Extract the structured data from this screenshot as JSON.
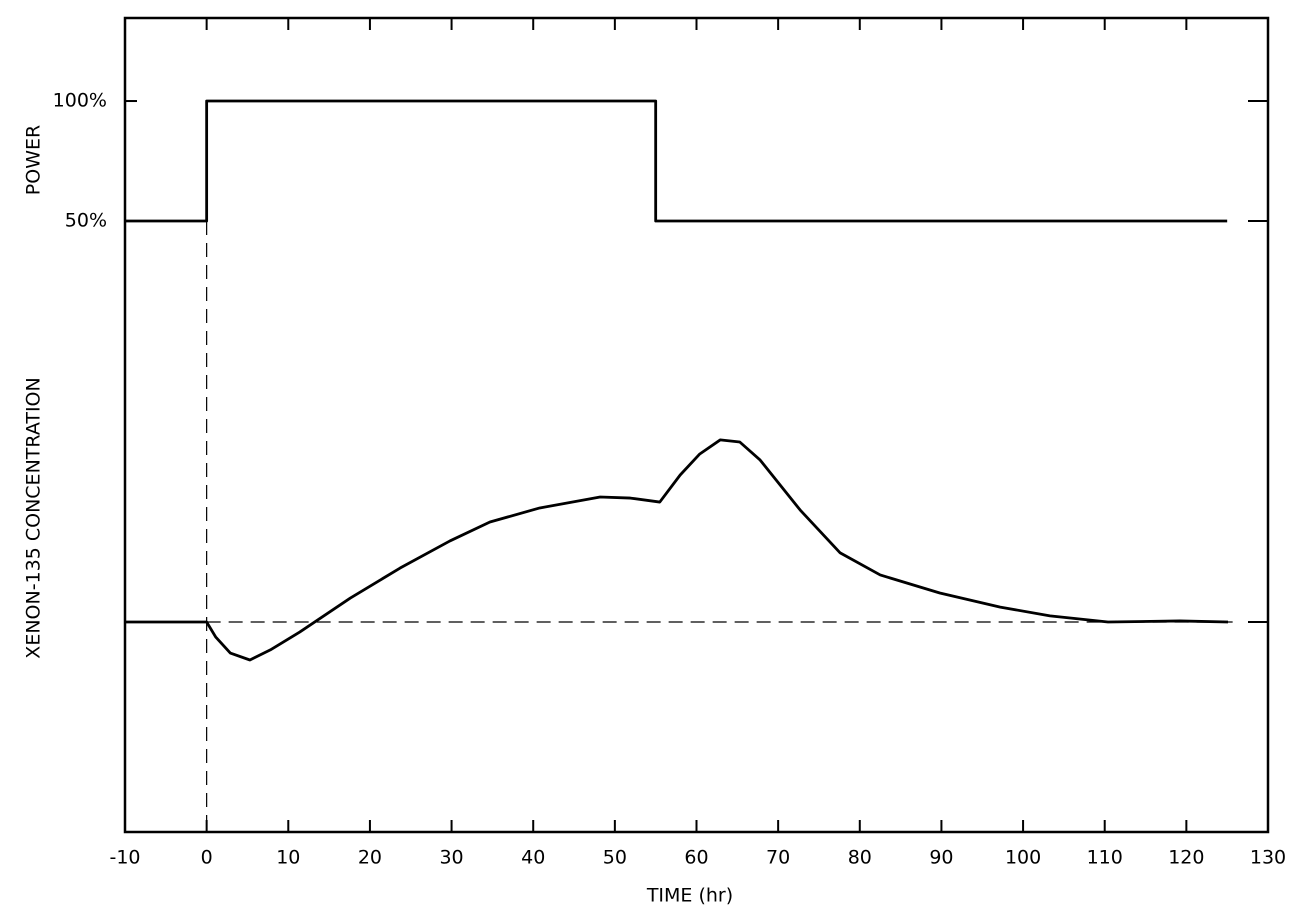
{
  "chart_data": {
    "type": "line",
    "x_label": "TIME (hr)",
    "y_label": "POWER",
    "y2_label": "XENON-135 CONCENTRATION",
    "xlim": [
      -10,
      130
    ],
    "xticks": [
      -10,
      0,
      10,
      20,
      30,
      40,
      50,
      60,
      70,
      80,
      90,
      100,
      110,
      120,
      130
    ],
    "ylim": [
      -204.6,
      134.6
    ],
    "yticks": [
      {
        "value": 100,
        "label": "100%"
      },
      {
        "value": 50,
        "label": "50%"
      }
    ],
    "y2lim": [
      0,
      3.876
    ],
    "reference_lines": {
      "x": 0,
      "y2": 1
    },
    "series": [
      {
        "name": "POWER",
        "color": "#000000",
        "x": [
          -10,
          0,
          0,
          55,
          55,
          125
        ],
        "values": [
          50,
          50,
          100,
          100,
          50,
          50
        ]
      },
      {
        "name": "XENON-135 CONCENTRATION",
        "color": "#000000",
        "axis": "y2",
        "x": [
          -10,
          0,
          1.1,
          2.9,
          5.3,
          7.8,
          11.4,
          17.6,
          23.7,
          29.8,
          34.7,
          40.8,
          48.2,
          51.9,
          55.5,
          58.0,
          60.4,
          62.9,
          65.3,
          67.8,
          72.7,
          77.6,
          82.5,
          89.8,
          97.2,
          103.3,
          110.4,
          119.2,
          125.1
        ],
        "values": [
          1,
          1,
          0.929,
          0.852,
          0.819,
          0.867,
          0.952,
          1.114,
          1.257,
          1.386,
          1.476,
          1.543,
          1.595,
          1.59,
          1.571,
          1.7,
          1.8,
          1.867,
          1.857,
          1.771,
          1.533,
          1.329,
          1.224,
          1.138,
          1.071,
          1.029,
          1.0,
          1.005,
          1.0
        ]
      }
    ]
  }
}
